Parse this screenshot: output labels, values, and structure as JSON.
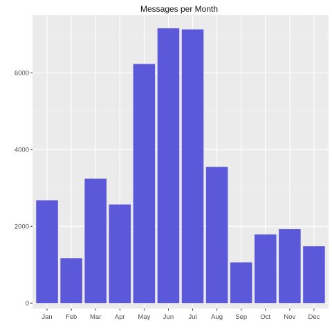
{
  "chart_data": {
    "type": "bar",
    "title": "Messages per Month",
    "xlabel": "",
    "ylabel": "",
    "categories": [
      "Jan",
      "Feb",
      "Mar",
      "Apr",
      "May",
      "Jun",
      "Jul",
      "Aug",
      "Sep",
      "Oct",
      "Nov",
      "Dec"
    ],
    "values": [
      2680,
      1170,
      3240,
      2570,
      6230,
      7160,
      7130,
      3550,
      1060,
      1790,
      1930,
      1480
    ],
    "ylim": [
      -140,
      7500
    ],
    "yticks": [
      0,
      2000,
      4000,
      6000
    ],
    "ytick_labels": [
      "0",
      "2000",
      "4000",
      "6000"
    ],
    "grid": true,
    "colors": {
      "bar": "#5b59d9",
      "panel": "#ebebeb",
      "grid_major": "#ffffff",
      "grid_minor": "#f4f4f4"
    }
  }
}
